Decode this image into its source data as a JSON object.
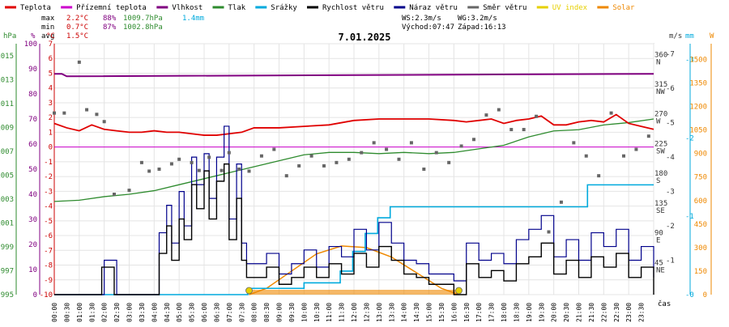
{
  "legend": [
    {
      "label": "Teplota",
      "color": "#e00000"
    },
    {
      "label": "Přízemní teplota",
      "color": "#cc00cc"
    },
    {
      "label": "Vlhkost",
      "color": "#800080"
    },
    {
      "label": "Tlak",
      "color": "#2e8b2e"
    },
    {
      "label": "Srážky",
      "color": "#00aadd"
    },
    {
      "label": "Rychlost větru",
      "color": "#000000"
    },
    {
      "label": "Náraz větru",
      "color": "#00008b"
    },
    {
      "label": "Směr větru",
      "color": "#666666"
    },
    {
      "label": "UV index",
      "color": "#e6d000"
    },
    {
      "label": "Solar",
      "color": "#ee8800"
    }
  ],
  "stats": {
    "max_label": "max",
    "max_temp": "2.2°C",
    "max_hum": "88%",
    "max_press": "1009.7hPa",
    "rain_total": "1.4mm",
    "min_label": "min",
    "min_temp": "0.7°C",
    "min_hum": "87%",
    "min_press": "1002.8hPa",
    "avg_label": "avg",
    "avg_temp": "1.5°C"
  },
  "wind_info": {
    "ws": "WS:2.3m/s",
    "wg": "WG:3.2m/s",
    "sunrise": "Východ:07:47",
    "sunset": "Západ:16:13"
  },
  "date": "7.01.2025",
  "x_axis_label": "čas",
  "axes": {
    "hpa": {
      "unit": "hPa",
      "color": "#2e8b2e",
      "ticks": [
        "995",
        "997",
        "999",
        "1001",
        "1003",
        "1005",
        "1007",
        "1009",
        "1011",
        "1013",
        "1015"
      ]
    },
    "pct": {
      "unit": "%",
      "color": "#800080",
      "ticks": [
        "0",
        "10",
        "20",
        "30",
        "40",
        "50",
        "60",
        "70",
        "80",
        "90",
        "100"
      ]
    },
    "degc": {
      "unit": "°C",
      "color": "#cc0000",
      "ticks": [
        "-10",
        "-9",
        "-8",
        "-7",
        "-6",
        "-5",
        "-4",
        "-3",
        "-2",
        "-1",
        "0",
        "1",
        "2",
        "3",
        "4",
        "5",
        "6",
        "7"
      ]
    },
    "wind": {
      "unit": "m/s",
      "color": "#333333",
      "ticks": [
        "1",
        "2",
        "3",
        "4",
        "5",
        "6",
        "7"
      ]
    },
    "dir": {
      "color": "#333333",
      "ticks": [
        {
          "deg": "45",
          "name": "NE"
        },
        {
          "deg": "90",
          "name": "E"
        },
        {
          "deg": "135",
          "name": "SE"
        },
        {
          "deg": "180",
          "name": "S"
        },
        {
          "deg": "225",
          "name": "SW"
        },
        {
          "deg": "270",
          "name": "W"
        },
        {
          "deg": "315",
          "name": "NW"
        },
        {
          "deg": "360",
          "name": "N"
        }
      ]
    },
    "mm": {
      "unit": "mm",
      "color": "#00aadd",
      "ticks": [
        "0",
        "1",
        "2",
        "3"
      ]
    },
    "w": {
      "unit": "W",
      "color": "#ee8800",
      "ticks": [
        "0",
        "150",
        "300",
        "450",
        "600",
        "750",
        "900",
        "1050",
        "1200",
        "1350",
        "1500"
      ]
    }
  },
  "chart_data": {
    "type": "line",
    "title": "7.01.2025",
    "xlabel": "čas",
    "x_ticks": [
      "00:00",
      "00:30",
      "01:00",
      "01:30",
      "02:00",
      "02:30",
      "03:00",
      "03:30",
      "04:00",
      "04:30",
      "05:00",
      "05:30",
      "06:00",
      "06:30",
      "07:00",
      "07:30",
      "08:00",
      "08:30",
      "09:00",
      "09:30",
      "10:00",
      "10:30",
      "11:00",
      "11:30",
      "12:00",
      "12:30",
      "13:00",
      "13:30",
      "14:00",
      "14:30",
      "15:00",
      "15:30",
      "16:00",
      "16:30",
      "17:00",
      "17:30",
      "18:00",
      "18:30",
      "19:00",
      "19:30",
      "20:00",
      "20:30",
      "21:00",
      "21:30",
      "22:00",
      "22:30",
      "23:00",
      "23:30"
    ],
    "series": [
      {
        "name": "Teplota",
        "unit": "°C",
        "color": "#e00000",
        "x_hours": [
          0,
          0.5,
          1,
          1.5,
          2,
          2.5,
          3,
          3.5,
          4,
          4.5,
          5,
          5.5,
          6,
          6.5,
          7,
          7.5,
          8,
          9,
          10,
          11,
          12,
          13,
          14,
          15,
          16,
          16.5,
          17,
          17.5,
          18,
          18.5,
          19,
          19.5,
          20,
          20.5,
          21,
          21.5,
          22,
          22.5,
          23,
          23.5,
          24
        ],
        "values": [
          1.6,
          1.3,
          1.1,
          1.5,
          1.2,
          1.1,
          1.0,
          1.0,
          1.1,
          1.0,
          1.0,
          0.9,
          0.8,
          0.8,
          0.9,
          1.0,
          1.3,
          1.3,
          1.4,
          1.5,
          1.8,
          1.9,
          1.9,
          1.9,
          1.8,
          1.7,
          1.8,
          1.9,
          1.6,
          1.8,
          1.9,
          2.1,
          1.5,
          1.5,
          1.7,
          1.8,
          1.7,
          2.2,
          1.6,
          1.4,
          1.2
        ]
      },
      {
        "name": "Přízemní teplota",
        "unit": "°C",
        "color": "#cc00cc",
        "x_hours": [
          0,
          24
        ],
        "values": [
          0,
          0
        ]
      },
      {
        "name": "Vlhkost",
        "unit": "%",
        "color": "#800080",
        "x_hours": [
          0,
          0.3,
          0.5,
          24
        ],
        "values": [
          88,
          88,
          87,
          88
        ]
      },
      {
        "name": "Tlak",
        "unit": "hPa",
        "color": "#2e8b2e",
        "x_hours": [
          0,
          1,
          2,
          3,
          4,
          5,
          6,
          7,
          8,
          9,
          10,
          11,
          12,
          13,
          14,
          15,
          16,
          17,
          18,
          19,
          20,
          21,
          22,
          23,
          24
        ],
        "values": [
          1002.8,
          1002.9,
          1003.2,
          1003.4,
          1003.7,
          1004.2,
          1004.7,
          1005.2,
          1005.7,
          1006.2,
          1006.7,
          1006.9,
          1006.9,
          1006.8,
          1006.9,
          1006.8,
          1006.9,
          1007.2,
          1007.5,
          1008.2,
          1008.7,
          1008.8,
          1009.2,
          1009.4,
          1009.7
        ]
      },
      {
        "name": "Srážky",
        "unit": "mm",
        "color": "#00aadd",
        "x_hours": [
          0,
          7.7,
          7.75,
          9.9,
          10.0,
          11.4,
          11.45,
          11.9,
          11.95,
          12.4,
          12.45,
          12.9,
          12.95,
          13.4,
          13.45,
          14.4,
          14.5,
          21.3,
          21.35,
          24
        ],
        "values": [
          0,
          0,
          0.08,
          0.08,
          0.15,
          0.15,
          0.3,
          0.3,
          0.55,
          0.55,
          0.78,
          0.78,
          0.98,
          0.98,
          1.12,
          1.12,
          1.12,
          1.12,
          1.4,
          1.4
        ]
      },
      {
        "name": "Rychlost větru",
        "unit": "m/s",
        "color": "#000000",
        "x_hours": [
          0,
          1.8,
          1.9,
          2.3,
          2.4,
          4.0,
          4.2,
          4.5,
          4.7,
          5.0,
          5.2,
          5.5,
          5.7,
          6.0,
          6.2,
          6.5,
          6.8,
          7.0,
          7.3,
          7.5,
          7.7,
          8.0,
          8.5,
          9.0,
          9.5,
          10.0,
          10.5,
          11.0,
          11.5,
          12.0,
          12.5,
          13.0,
          13.5,
          14.0,
          14.5,
          15.0,
          16.0,
          16.5,
          17.0,
          17.5,
          18.0,
          18.5,
          19.0,
          19.5,
          20.0,
          20.5,
          21.0,
          21.5,
          22.0,
          22.5,
          23.0,
          23.5,
          24
        ],
        "values": [
          0,
          0,
          0.8,
          0.8,
          0,
          0,
          1.2,
          2.0,
          1.0,
          2.2,
          1.6,
          3.2,
          2.5,
          3.6,
          2.2,
          3.3,
          3.8,
          1.6,
          2.8,
          1.0,
          0.5,
          0.5,
          0.8,
          0.3,
          0.5,
          0.8,
          0.5,
          0.9,
          0.6,
          1.2,
          0.8,
          1.4,
          1.0,
          0.6,
          0.5,
          0.3,
          0,
          0.9,
          0.5,
          0.7,
          0.4,
          0.9,
          1.1,
          1.5,
          0.6,
          1.0,
          0.5,
          1.1,
          0.8,
          1.2,
          0.5,
          0.8,
          0
        ]
      },
      {
        "name": "Náraz větru",
        "unit": "m/s",
        "color": "#00008b",
        "x_hours": [
          0,
          1.8,
          2.0,
          2.3,
          2.5,
          4.0,
          4.2,
          4.5,
          4.7,
          5.0,
          5.2,
          5.5,
          5.7,
          6.0,
          6.2,
          6.5,
          6.8,
          7.0,
          7.3,
          7.5,
          7.7,
          8.0,
          8.5,
          9.0,
          9.5,
          10.0,
          10.5,
          11.0,
          11.5,
          12.0,
          12.5,
          13.0,
          13.5,
          14.0,
          14.5,
          15.0,
          16.0,
          16.5,
          17.0,
          17.5,
          18.0,
          18.5,
          19.0,
          19.5,
          20.0,
          20.5,
          21.0,
          21.5,
          22.0,
          22.5,
          23.0,
          23.5,
          24
        ],
        "values": [
          0,
          0,
          1.0,
          1.0,
          0,
          0,
          1.8,
          2.6,
          1.5,
          3.0,
          2.0,
          4.0,
          3.2,
          4.1,
          2.8,
          4.0,
          4.9,
          2.2,
          3.8,
          1.5,
          0.9,
          0.9,
          1.2,
          0.6,
          0.9,
          1.3,
          0.8,
          1.4,
          1.1,
          1.9,
          1.3,
          2.1,
          1.5,
          1.0,
          0.9,
          0.6,
          0.4,
          1.5,
          1.0,
          1.2,
          0.9,
          1.6,
          1.9,
          2.3,
          1.1,
          1.6,
          1.0,
          1.8,
          1.4,
          1.9,
          1.0,
          1.4,
          0.5
        ]
      },
      {
        "name": "Směr větru",
        "unit": "°",
        "color": "#666666",
        "x_hours": [
          0,
          0.4,
          1.0,
          1.3,
          1.7,
          2.0,
          2.4,
          3.0,
          3.5,
          3.8,
          4.2,
          4.7,
          5.0,
          5.5,
          5.8,
          6.2,
          6.7,
          7.0,
          7.4,
          7.8,
          8.3,
          8.8,
          9.3,
          9.8,
          10.3,
          10.8,
          11.3,
          11.8,
          12.3,
          12.8,
          13.3,
          13.8,
          14.3,
          14.8,
          15.3,
          15.8,
          16.3,
          16.8,
          17.3,
          17.8,
          18.3,
          18.8,
          19.3,
          19.8,
          20.3,
          20.8,
          21.3,
          21.8,
          22.3,
          22.8,
          23.3,
          23.8
        ],
        "values": [
          275,
          275,
          352,
          280,
          273,
          262,
          152,
          158,
          200,
          187,
          190,
          198,
          205,
          200,
          188,
          208,
          188,
          215,
          190,
          187,
          210,
          220,
          180,
          195,
          210,
          195,
          200,
          205,
          215,
          230,
          220,
          205,
          230,
          190,
          215,
          200,
          225,
          235,
          272,
          280,
          250,
          250,
          270,
          95,
          140,
          230,
          210,
          180,
          275,
          210,
          220,
          240
        ]
      },
      {
        "name": "UV index",
        "unit": "",
        "color": "#e6d000",
        "x_hours": [
          7.8,
          16.2
        ],
        "values": [
          0,
          0
        ]
      },
      {
        "name": "Solar",
        "unit": "W",
        "color": "#ee8800",
        "x_hours": [
          7.8,
          8.5,
          9.5,
          10.5,
          11.5,
          12.5,
          13.5,
          14.5,
          15.5,
          16.2
        ],
        "values": [
          0,
          40,
          150,
          260,
          310,
          300,
          240,
          140,
          40,
          0
        ]
      }
    ],
    "axes_ranges": {
      "temp_c": [
        -10,
        7
      ],
      "humidity_pct": [
        0,
        100
      ],
      "pressure_hpa": [
        995,
        1016
      ],
      "wind_ms": [
        0,
        7.3
      ],
      "wind_dir_deg": [
        0,
        380
      ],
      "rain_mm": [
        0,
        3.2
      ],
      "solar_w": [
        0,
        1600
      ]
    },
    "grid": true,
    "legend_position": "top"
  }
}
